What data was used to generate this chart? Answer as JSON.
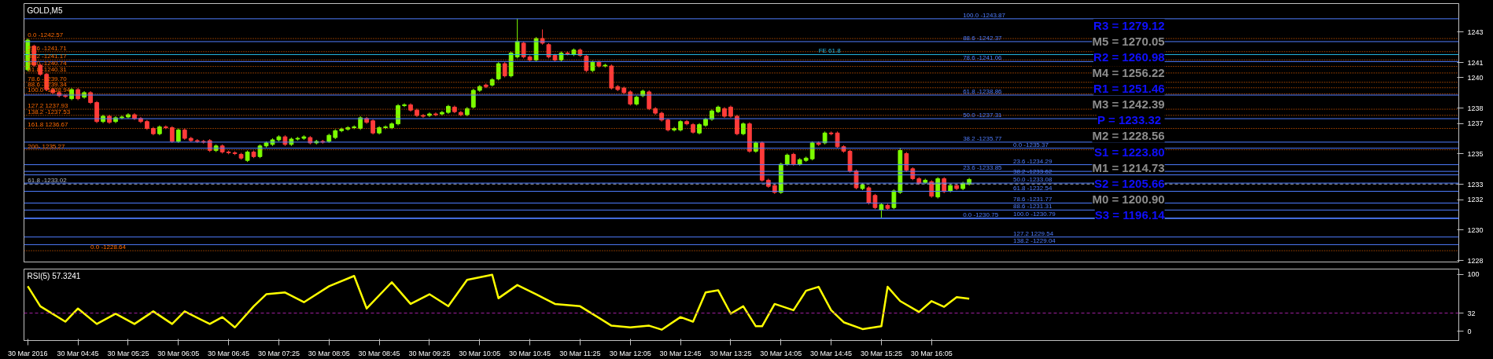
{
  "chart_data": [
    {
      "type": "candlestick",
      "title": "GOLD,M5",
      "x": [
        "2016-03-30T04:05",
        "2016-03-30T04:10",
        "2016-03-30T04:15",
        "2016-03-30T04:20",
        "2016-03-30T04:25",
        "2016-03-30T04:30",
        "2016-03-30T04:35",
        "2016-03-30T04:40",
        "2016-03-30T04:45",
        "2016-03-30T04:50",
        "2016-03-30T04:55",
        "2016-03-30T05:00",
        "2016-03-30T05:05",
        "2016-03-30T05:10",
        "2016-03-30T05:15",
        "2016-03-30T05:20",
        "2016-03-30T05:25",
        "2016-03-30T05:30",
        "2016-03-30T05:35",
        "2016-03-30T05:40",
        "2016-03-30T05:45",
        "2016-03-30T05:50",
        "2016-03-30T05:55",
        "2016-03-30T06:00",
        "2016-03-30T06:05",
        "2016-03-30T06:10",
        "2016-03-30T06:15",
        "2016-03-30T06:20",
        "2016-03-30T06:25",
        "2016-03-30T06:30",
        "2016-03-30T06:35",
        "2016-03-30T06:40",
        "2016-03-30T06:45",
        "2016-03-30T06:50",
        "2016-03-30T06:55",
        "2016-03-30T07:00",
        "2016-03-30T07:05",
        "2016-03-30T07:10",
        "2016-03-30T07:15",
        "2016-03-30T07:20",
        "2016-03-30T07:25",
        "2016-03-30T07:30",
        "2016-03-30T07:35",
        "2016-03-30T07:40",
        "2016-03-30T07:45",
        "2016-03-30T07:50",
        "2016-03-30T07:55",
        "2016-03-30T08:00",
        "2016-03-30T08:05",
        "2016-03-30T08:10",
        "2016-03-30T08:15",
        "2016-03-30T08:20",
        "2016-03-30T08:25",
        "2016-03-30T08:30",
        "2016-03-30T08:35",
        "2016-03-30T08:40",
        "2016-03-30T08:45",
        "2016-03-30T08:50",
        "2016-03-30T08:55",
        "2016-03-30T09:00",
        "2016-03-30T09:05",
        "2016-03-30T09:10",
        "2016-03-30T09:15",
        "2016-03-30T09:20",
        "2016-03-30T09:25",
        "2016-03-30T09:30",
        "2016-03-30T09:35",
        "2016-03-30T09:40",
        "2016-03-30T09:45",
        "2016-03-30T09:50",
        "2016-03-30T09:55",
        "2016-03-30T10:00",
        "2016-03-30T10:05",
        "2016-03-30T10:10",
        "2016-03-30T10:15",
        "2016-03-30T10:20",
        "2016-03-30T10:25",
        "2016-03-30T10:30",
        "2016-03-30T10:35",
        "2016-03-30T10:40",
        "2016-03-30T10:45",
        "2016-03-30T10:50",
        "2016-03-30T10:55",
        "2016-03-30T11:00",
        "2016-03-30T11:05",
        "2016-03-30T11:10",
        "2016-03-30T11:15",
        "2016-03-30T11:20",
        "2016-03-30T11:25",
        "2016-03-30T11:30",
        "2016-03-30T11:35",
        "2016-03-30T11:40",
        "2016-03-30T11:45",
        "2016-03-30T11:50",
        "2016-03-30T11:55",
        "2016-03-30T12:00",
        "2016-03-30T12:05",
        "2016-03-30T12:10",
        "2016-03-30T12:15",
        "2016-03-30T12:20",
        "2016-03-30T12:25",
        "2016-03-30T12:30",
        "2016-03-30T12:35",
        "2016-03-30T12:40",
        "2016-03-30T12:45",
        "2016-03-30T12:50",
        "2016-03-30T12:55",
        "2016-03-30T13:00",
        "2016-03-30T13:05",
        "2016-03-30T13:10",
        "2016-03-30T13:15",
        "2016-03-30T13:20",
        "2016-03-30T13:25",
        "2016-03-30T13:30",
        "2016-03-30T13:35",
        "2016-03-30T13:40",
        "2016-03-30T13:45",
        "2016-03-30T13:50",
        "2016-03-30T13:55",
        "2016-03-30T14:00",
        "2016-03-30T14:05",
        "2016-03-30T14:10",
        "2016-03-30T14:15",
        "2016-03-30T14:20",
        "2016-03-30T14:25",
        "2016-03-30T14:30",
        "2016-03-30T14:35",
        "2016-03-30T14:40",
        "2016-03-30T14:45",
        "2016-03-30T14:50",
        "2016-03-30T14:55",
        "2016-03-30T15:00",
        "2016-03-30T15:05",
        "2016-03-30T15:10",
        "2016-03-30T15:15",
        "2016-03-30T15:20",
        "2016-03-30T15:25",
        "2016-03-30T15:30",
        "2016-03-30T15:35",
        "2016-03-30T15:40",
        "2016-03-30T15:45",
        "2016-03-30T15:50",
        "2016-03-30T15:55",
        "2016-03-30T16:00",
        "2016-03-30T16:05",
        "2016-03-30T16:10",
        "2016-03-30T16:15",
        "2016-03-30T16:20",
        "2016-03-30T16:25",
        "2016-03-30T16:30",
        "2016-03-30T16:35"
      ],
      "ohlc": [
        [
          1240.52,
          1242.57,
          1240.42,
          1242.47
        ],
        [
          1242.07,
          1242.17,
          1240.72,
          1240.82
        ],
        [
          1240.82,
          1240.92,
          1240.12,
          1240.22
        ],
        [
          1240.22,
          1240.32,
          1239.12,
          1239.22
        ],
        [
          1239.22,
          1239.32,
          1238.92,
          1239.02
        ],
        [
          1239.02,
          1239.12,
          1238.72,
          1238.82
        ],
        [
          1238.82,
          1238.92,
          1238.67,
          1238.77
        ],
        [
          1238.62,
          1239.32,
          1238.52,
          1239.22
        ],
        [
          1239.22,
          1239.32,
          1238.52,
          1238.62
        ],
        [
          1238.72,
          1239.12,
          1238.62,
          1239.02
        ],
        [
          1239.02,
          1239.12,
          1238.27,
          1238.37
        ],
        [
          1238.37,
          1238.47,
          1237.02,
          1237.12
        ],
        [
          1237.12,
          1237.57,
          1237.02,
          1237.47
        ],
        [
          1237.47,
          1237.57,
          1236.97,
          1237.07
        ],
        [
          1237.12,
          1237.47,
          1237.02,
          1237.37
        ],
        [
          1237.37,
          1237.52,
          1237.27,
          1237.42
        ],
        [
          1237.42,
          1237.67,
          1237.32,
          1237.57
        ],
        [
          1237.57,
          1237.67,
          1237.22,
          1237.32
        ],
        [
          1237.32,
          1237.42,
          1237.02,
          1237.12
        ],
        [
          1237.12,
          1237.22,
          1236.57,
          1236.67
        ],
        [
          1236.67,
          1236.77,
          1236.22,
          1236.32
        ],
        [
          1236.32,
          1236.87,
          1236.22,
          1236.77
        ],
        [
          1236.77,
          1236.87,
          1236.62,
          1236.72
        ],
        [
          1236.72,
          1236.82,
          1235.72,
          1235.82
        ],
        [
          1235.82,
          1236.67,
          1235.72,
          1236.57
        ],
        [
          1236.57,
          1236.67,
          1235.92,
          1236.02
        ],
        [
          1236.02,
          1236.12,
          1235.77,
          1235.87
        ],
        [
          1235.87,
          1235.97,
          1235.72,
          1235.82
        ],
        [
          1235.82,
          1235.92,
          1235.67,
          1235.77
        ],
        [
          1235.87,
          1235.97,
          1235.12,
          1235.22
        ],
        [
          1235.22,
          1235.62,
          1235.12,
          1235.52
        ],
        [
          1235.52,
          1235.62,
          1235.02,
          1235.12
        ],
        [
          1235.12,
          1235.22,
          1234.97,
          1235.07
        ],
        [
          1235.07,
          1235.17,
          1234.92,
          1235.02
        ],
        [
          1234.97,
          1235.07,
          1234.62,
          1234.72
        ],
        [
          1234.57,
          1235.22,
          1234.47,
          1235.12
        ],
        [
          1235.12,
          1235.22,
          1234.72,
          1234.82
        ],
        [
          1234.82,
          1235.62,
          1234.72,
          1235.52
        ],
        [
          1235.52,
          1235.82,
          1235.42,
          1235.72
        ],
        [
          1235.62,
          1236.02,
          1235.52,
          1235.92
        ],
        [
          1235.92,
          1236.22,
          1235.82,
          1236.12
        ],
        [
          1236.12,
          1236.22,
          1235.52,
          1235.62
        ],
        [
          1235.62,
          1236.07,
          1235.52,
          1235.97
        ],
        [
          1235.97,
          1236.12,
          1235.87,
          1236.02
        ],
        [
          1236.02,
          1236.22,
          1235.92,
          1236.12
        ],
        [
          1236.07,
          1236.17,
          1235.62,
          1235.72
        ],
        [
          1235.72,
          1235.92,
          1235.62,
          1235.82
        ],
        [
          1235.82,
          1235.92,
          1235.67,
          1235.77
        ],
        [
          1235.82,
          1236.32,
          1235.72,
          1236.22
        ],
        [
          1236.07,
          1236.62,
          1235.97,
          1236.52
        ],
        [
          1236.52,
          1236.72,
          1236.42,
          1236.62
        ],
        [
          1236.62,
          1236.82,
          1236.52,
          1236.72
        ],
        [
          1236.72,
          1236.87,
          1236.62,
          1236.77
        ],
        [
          1236.67,
          1237.47,
          1236.57,
          1237.37
        ],
        [
          1237.32,
          1237.42,
          1236.97,
          1237.07
        ],
        [
          1237.17,
          1237.27,
          1236.27,
          1236.37
        ],
        [
          1236.37,
          1236.82,
          1236.27,
          1236.72
        ],
        [
          1236.72,
          1236.87,
          1236.62,
          1236.77
        ],
        [
          1236.72,
          1237.07,
          1236.62,
          1236.97
        ],
        [
          1236.97,
          1238.27,
          1236.87,
          1238.17
        ],
        [
          1238.17,
          1238.32,
          1238.07,
          1238.22
        ],
        [
          1238.22,
          1238.32,
          1237.77,
          1237.87
        ],
        [
          1237.87,
          1237.97,
          1237.42,
          1237.52
        ],
        [
          1237.52,
          1237.62,
          1237.37,
          1237.47
        ],
        [
          1237.52,
          1237.72,
          1237.42,
          1237.62
        ],
        [
          1237.62,
          1237.72,
          1237.47,
          1237.57
        ],
        [
          1237.62,
          1237.82,
          1237.52,
          1237.72
        ],
        [
          1237.72,
          1238.22,
          1237.62,
          1238.12
        ],
        [
          1238.07,
          1238.17,
          1237.67,
          1237.77
        ],
        [
          1237.72,
          1237.82,
          1237.47,
          1237.57
        ],
        [
          1237.57,
          1238.07,
          1237.47,
          1237.97
        ],
        [
          1238.07,
          1239.27,
          1237.97,
          1239.17
        ],
        [
          1239.17,
          1239.52,
          1239.07,
          1239.42
        ],
        [
          1239.52,
          1239.62,
          1239.32,
          1239.42
        ],
        [
          1239.52,
          1239.97,
          1239.42,
          1239.87
        ],
        [
          1239.92,
          1241.02,
          1239.82,
          1240.92
        ],
        [
          1240.92,
          1241.02,
          1240.02,
          1240.12
        ],
        [
          1240.12,
          1241.72,
          1240.02,
          1241.62
        ],
        [
          1241.37,
          1243.87,
          1241.27,
          1242.37
        ],
        [
          1242.27,
          1242.37,
          1241.27,
          1241.37
        ],
        [
          1241.37,
          1241.47,
          1241.07,
          1241.17
        ],
        [
          1241.17,
          1242.67,
          1241.07,
          1242.57
        ],
        [
          1242.57,
          1243.17,
          1242.17,
          1242.27
        ],
        [
          1242.17,
          1242.27,
          1241.27,
          1241.37
        ],
        [
          1241.47,
          1241.57,
          1241.07,
          1241.17
        ],
        [
          1241.17,
          1241.72,
          1241.07,
          1241.62
        ],
        [
          1241.62,
          1241.72,
          1241.47,
          1241.57
        ],
        [
          1241.52,
          1241.92,
          1241.42,
          1241.82
        ],
        [
          1241.82,
          1241.92,
          1241.37,
          1241.47
        ],
        [
          1241.42,
          1241.52,
          1240.37,
          1240.47
        ],
        [
          1240.47,
          1241.12,
          1240.37,
          1241.02
        ],
        [
          1241.02,
          1241.12,
          1240.67,
          1240.77
        ],
        [
          1240.77,
          1240.92,
          1240.67,
          1240.82
        ],
        [
          1240.77,
          1240.87,
          1239.22,
          1239.32
        ],
        [
          1239.42,
          1239.52,
          1239.12,
          1239.22
        ],
        [
          1239.32,
          1239.42,
          1238.92,
          1239.02
        ],
        [
          1239.07,
          1239.17,
          1238.17,
          1238.27
        ],
        [
          1238.27,
          1238.82,
          1238.17,
          1238.72
        ],
        [
          1238.82,
          1239.22,
          1238.72,
          1239.12
        ],
        [
          1239.07,
          1239.17,
          1237.87,
          1237.97
        ],
        [
          1237.97,
          1238.07,
          1237.57,
          1237.67
        ],
        [
          1237.67,
          1237.77,
          1237.12,
          1237.22
        ],
        [
          1237.22,
          1237.32,
          1236.47,
          1236.57
        ],
        [
          1236.57,
          1236.77,
          1236.47,
          1236.67
        ],
        [
          1236.57,
          1237.22,
          1236.47,
          1237.12
        ],
        [
          1237.12,
          1237.22,
          1236.87,
          1236.97
        ],
        [
          1236.92,
          1237.02,
          1236.32,
          1236.42
        ],
        [
          1236.37,
          1237.02,
          1236.27,
          1236.92
        ],
        [
          1236.87,
          1237.37,
          1236.77,
          1237.27
        ],
        [
          1237.27,
          1237.92,
          1237.17,
          1237.82
        ],
        [
          1237.77,
          1238.17,
          1237.67,
          1238.07
        ],
        [
          1237.97,
          1238.07,
          1237.37,
          1237.47
        ],
        [
          1238.07,
          1238.17,
          1237.37,
          1237.47
        ],
        [
          1237.47,
          1237.57,
          1236.22,
          1236.32
        ],
        [
          1236.32,
          1237.07,
          1236.22,
          1236.97
        ],
        [
          1236.97,
          1237.07,
          1235.07,
          1235.17
        ],
        [
          1235.17,
          1235.82,
          1235.07,
          1235.72
        ],
        [
          1235.72,
          1235.82,
          1233.17,
          1233.27
        ],
        [
          1233.27,
          1233.37,
          1232.77,
          1232.87
        ],
        [
          1232.92,
          1233.02,
          1232.37,
          1232.47
        ],
        [
          1232.47,
          1234.42,
          1232.37,
          1234.32
        ],
        [
          1234.32,
          1235.02,
          1234.22,
          1234.92
        ],
        [
          1234.97,
          1235.07,
          1234.22,
          1234.32
        ],
        [
          1234.32,
          1234.72,
          1234.22,
          1234.62
        ],
        [
          1234.57,
          1234.82,
          1234.47,
          1234.72
        ],
        [
          1234.67,
          1235.82,
          1234.57,
          1235.72
        ],
        [
          1235.72,
          1235.82,
          1235.52,
          1235.62
        ],
        [
          1235.72,
          1236.47,
          1235.62,
          1236.37
        ],
        [
          1236.37,
          1236.47,
          1236.22,
          1236.32
        ],
        [
          1236.37,
          1236.47,
          1235.37,
          1235.47
        ],
        [
          1235.47,
          1235.57,
          1235.07,
          1235.17
        ],
        [
          1235.17,
          1235.27,
          1233.77,
          1233.87
        ],
        [
          1233.87,
          1233.97,
          1232.67,
          1232.77
        ],
        [
          1232.72,
          1233.07,
          1232.62,
          1232.97
        ],
        [
          1232.77,
          1232.87,
          1231.67,
          1231.77
        ],
        [
          1232.27,
          1232.37,
          1231.37,
          1231.47
        ],
        [
          1231.32,
          1231.77,
          1230.79,
          1231.67
        ],
        [
          1231.62,
          1231.72,
          1231.32,
          1231.42
        ],
        [
          1231.47,
          1232.67,
          1231.37,
          1232.57
        ],
        [
          1232.47,
          1235.37,
          1232.37,
          1235.22
        ],
        [
          1235.02,
          1235.12,
          1233.82,
          1233.92
        ],
        [
          1234.02,
          1234.12,
          1233.27,
          1233.37
        ],
        [
          1233.37,
          1233.47,
          1232.97,
          1233.07
        ],
        [
          1233.12,
          1233.37,
          1233.02,
          1233.27
        ],
        [
          1233.17,
          1233.27,
          1232.12,
          1232.22
        ],
        [
          1232.17,
          1233.47,
          1232.07,
          1233.37
        ],
        [
          1233.37,
          1233.47,
          1232.42,
          1232.52
        ],
        [
          1232.57,
          1233.02,
          1232.47,
          1232.92
        ],
        [
          1232.92,
          1233.02,
          1232.62,
          1232.72
        ],
        [
          1232.72,
          1233.17,
          1232.62,
          1233.07
        ],
        [
          1233.02,
          1233.42,
          1232.92,
          1233.32
        ]
      ],
      "colors": [
        "#7cfc00",
        "#ff3b3b",
        "#ff3b3b",
        "#ff3b3b",
        "#ff3b3b",
        "#ff3b3b",
        "#ff3b3b",
        "#7cfc00",
        "#ff3b3b",
        "#7cfc00",
        "#ff3b3b",
        "#ff3b3b",
        "#7cfc00",
        "#ff3b3b",
        "#7cfc00",
        "#7cfc00",
        "#7cfc00",
        "#ff3b3b",
        "#ff3b3b",
        "#ff3b3b",
        "#ff3b3b",
        "#7cfc00",
        "#ff3b3b",
        "#ff3b3b",
        "#7cfc00",
        "#ff3b3b",
        "#ff3b3b",
        "#ff3b3b",
        "#ff3b3b",
        "#ff3b3b",
        "#7cfc00",
        "#ff3b3b",
        "#ff3b3b",
        "#ff3b3b",
        "#ff3b3b",
        "#7cfc00",
        "#ff3b3b",
        "#7cfc00",
        "#7cfc00",
        "#7cfc00",
        "#7cfc00",
        "#ff3b3b",
        "#7cfc00",
        "#7cfc00",
        "#7cfc00",
        "#ff3b3b",
        "#7cfc00",
        "#ff3b3b",
        "#7cfc00",
        "#7cfc00",
        "#7cfc00",
        "#7cfc00",
        "#7cfc00",
        "#7cfc00",
        "#ff3b3b",
        "#ff3b3b",
        "#7cfc00",
        "#7cfc00",
        "#7cfc00",
        "#7cfc00",
        "#7cfc00",
        "#ff3b3b",
        "#ff3b3b",
        "#ff3b3b",
        "#7cfc00",
        "#ff3b3b",
        "#7cfc00",
        "#7cfc00",
        "#ff3b3b",
        "#ff3b3b",
        "#7cfc00",
        "#7cfc00",
        "#7cfc00",
        "#ff3b3b",
        "#7cfc00",
        "#7cfc00",
        "#ff3b3b",
        "#7cfc00",
        "#7cfc00",
        "#ff3b3b",
        "#ff3b3b",
        "#7cfc00",
        "#ff3b3b",
        "#ff3b3b",
        "#ff3b3b",
        "#7cfc00",
        "#ff3b3b",
        "#7cfc00",
        "#ff3b3b",
        "#ff3b3b",
        "#7cfc00",
        "#ff3b3b",
        "#7cfc00",
        "#ff3b3b",
        "#ff3b3b",
        "#ff3b3b",
        "#ff3b3b",
        "#7cfc00",
        "#7cfc00",
        "#ff3b3b",
        "#ff3b3b",
        "#ff3b3b",
        "#ff3b3b",
        "#7cfc00",
        "#7cfc00",
        "#ff3b3b",
        "#ff3b3b",
        "#7cfc00",
        "#7cfc00",
        "#7cfc00",
        "#7cfc00",
        "#ff3b3b",
        "#ff3b3b",
        "#ff3b3b",
        "#7cfc00",
        "#ff3b3b",
        "#7cfc00",
        "#ff3b3b",
        "#ff3b3b",
        "#ff3b3b",
        "#7cfc00",
        "#7cfc00",
        "#ff3b3b",
        "#7cfc00",
        "#7cfc00",
        "#7cfc00",
        "#ff3b3b",
        "#7cfc00",
        "#ff3b3b",
        "#ff3b3b",
        "#ff3b3b",
        "#ff3b3b",
        "#ff3b3b",
        "#7cfc00",
        "#ff3b3b",
        "#ff3b3b",
        "#7cfc00",
        "#ff3b3b",
        "#7cfc00",
        "#7cfc00",
        "#ff3b3b",
        "#ff3b3b",
        "#ff3b3b",
        "#7cfc00",
        "#ff3b3b",
        "#7cfc00",
        "#ff3b3b",
        "#7cfc00",
        "#ff3b3b",
        "#7cfc00",
        "#7cfc00"
      ],
      "xlim": [
        "2016-03-30T04:02",
        "2016-03-30T23:05"
      ],
      "ylim": [
        1227.9,
        1244.87
      ],
      "yticks": [
        1243,
        1241,
        1240,
        1238,
        1237,
        1235,
        1233,
        1232,
        1230,
        1228
      ],
      "tick_labels": "y",
      "ref_lines": [
        {
          "axis": "y",
          "value": 1242.57,
          "color": "#ff6a00",
          "line_style": "dotted"
        },
        {
          "axis": "y",
          "value": 1241.71,
          "color": "#ff6a00",
          "line_style": "dotted"
        },
        {
          "axis": "y",
          "value": 1241.17,
          "color": "#ff6a00",
          "line_style": "dotted"
        },
        {
          "axis": "y",
          "value": 1240.74,
          "color": "#ff6a00",
          "line_style": "dotted"
        },
        {
          "axis": "y",
          "value": 1240.31,
          "color": "#ff6a00",
          "line_style": "dotted"
        },
        {
          "axis": "y",
          "value": 1239.7,
          "color": "#ff6a00",
          "line_style": "dotted"
        },
        {
          "axis": "y",
          "value": 1239.34,
          "color": "#ff6a00",
          "line_style": "dotted"
        },
        {
          "axis": "y",
          "value": 1238.94,
          "color": "#ff6a00",
          "line_style": "dotted"
        },
        {
          "axis": "y",
          "value": 1237.93,
          "color": "#ff6a00",
          "line_style": "dotted"
        },
        {
          "axis": "y",
          "value": 1237.53,
          "color": "#ff6a00",
          "line_style": "dotted"
        },
        {
          "axis": "y",
          "value": 1236.67,
          "color": "#ff6a00",
          "line_style": "dotted"
        },
        {
          "axis": "y",
          "value": 1235.27,
          "color": "#ff6a00",
          "line_style": "dotted"
        },
        {
          "axis": "y",
          "value": 1233.02,
          "color": "#b0b8c8",
          "line_style": "dashed"
        },
        {
          "axis": "y",
          "value": 1228.64,
          "color": "#ff6a00",
          "line_style": "dotted"
        },
        {
          "axis": "y",
          "value": 1243.87,
          "color": "#4f7dff"
        },
        {
          "axis": "y",
          "value": 1242.37,
          "color": "#4f7dff"
        },
        {
          "axis": "y",
          "value": 1241.06,
          "color": "#4f7dff"
        },
        {
          "axis": "y",
          "value": 1238.86,
          "color": "#4f7dff"
        },
        {
          "axis": "y",
          "value": 1237.31,
          "color": "#4f7dff"
        },
        {
          "axis": "y",
          "value": 1235.77,
          "color": "#4f7dff"
        },
        {
          "axis": "y",
          "value": 1233.85,
          "color": "#4f7dff"
        },
        {
          "axis": "y",
          "value": 1230.75,
          "color": "#4f7dff"
        },
        {
          "axis": "y",
          "value": 1235.37,
          "color": "#4f7dff"
        },
        {
          "axis": "y",
          "value": 1234.29,
          "color": "#4f7dff"
        },
        {
          "axis": "y",
          "value": 1233.62,
          "color": "#4f7dff"
        },
        {
          "axis": "y",
          "value": 1233.08,
          "color": "#4f7dff"
        },
        {
          "axis": "y",
          "value": 1232.54,
          "color": "#4f7dff"
        },
        {
          "axis": "y",
          "value": 1231.77,
          "color": "#4f7dff"
        },
        {
          "axis": "y",
          "value": 1231.31,
          "color": "#4f7dff"
        },
        {
          "axis": "y",
          "value": 1230.79,
          "color": "#4f7dff"
        },
        {
          "axis": "y",
          "value": 1229.54,
          "color": "#4f7dff"
        },
        {
          "axis": "y",
          "value": 1229.04,
          "color": "#4f7dff"
        },
        {
          "axis": "y",
          "value": 1241.52,
          "color": "#22b8e6"
        }
      ],
      "annotations": [
        {
          "text": "0.0 -1242.57",
          "x": "2016-03-30T04:05",
          "y": 1242.57
        },
        {
          "text": "23.6 -1241.71",
          "x": "2016-03-30T04:05",
          "y": 1241.71
        },
        {
          "text": "38.2 -1241.17",
          "x": "2016-03-30T04:05",
          "y": 1241.17
        },
        {
          "text": "50.0 -1240.74",
          "x": "2016-03-30T04:05",
          "y": 1240.74
        },
        {
          "text": "61.8 -1240.31",
          "x": "2016-03-30T04:05",
          "y": 1240.31
        },
        {
          "text": "78.6 -1239.70",
          "x": "2016-03-30T04:05",
          "y": 1239.7
        },
        {
          "text": "88.6 -1239.34",
          "x": "2016-03-30T04:05",
          "y": 1239.34
        },
        {
          "text": "100.0 -1238.94",
          "x": "2016-03-30T04:05",
          "y": 1238.94
        },
        {
          "text": "127.2 1237.93",
          "x": "2016-03-30T04:05",
          "y": 1237.93
        },
        {
          "text": "138.2 -1237.53",
          "x": "2016-03-30T04:05",
          "y": 1237.53
        },
        {
          "text": "161.8 1236.67",
          "x": "2016-03-30T04:05",
          "y": 1236.67
        },
        {
          "text": "200- 1235.27",
          "x": "2016-03-30T04:05",
          "y": 1235.27
        },
        {
          "text": "61.8 -1233.02",
          "x": "2016-03-30T04:05",
          "y": 1233.02
        },
        {
          "text": "0.0 -1228.64",
          "x": "2016-03-30T04:55",
          "y": 1228.64
        },
        {
          "text": "FE 61.8",
          "x": "2016-03-30T14:35",
          "y": 1241.52
        },
        {
          "text": "100.0 -1243.87",
          "x": "2016-03-30T16:30",
          "y": 1243.87
        },
        {
          "text": "88.6 -1242.37",
          "x": "2016-03-30T16:30",
          "y": 1242.37
        },
        {
          "text": "78.6 -1241.06",
          "x": "2016-03-30T16:30",
          "y": 1241.06
        },
        {
          "text": "61.8 -1238.86",
          "x": "2016-03-30T16:30",
          "y": 1238.86
        },
        {
          "text": "50.0 -1237.31",
          "x": "2016-03-30T16:30",
          "y": 1237.31
        },
        {
          "text": "38.2 -1235.77",
          "x": "2016-03-30T16:30",
          "y": 1235.77
        },
        {
          "text": "23.6 -1233.85",
          "x": "2016-03-30T16:30",
          "y": 1233.85
        },
        {
          "text": "0.0 -1230.75",
          "x": "2016-03-30T16:30",
          "y": 1230.75
        },
        {
          "text": "0.0 -1235.37",
          "x": "2016-03-30T17:10",
          "y": 1235.37
        },
        {
          "text": "23.6 -1234.29",
          "x": "2016-03-30T17:10",
          "y": 1234.29
        },
        {
          "text": "38.2 -1233.62",
          "x": "2016-03-30T17:10",
          "y": 1233.62
        },
        {
          "text": "50.0 -1233.08",
          "x": "2016-03-30T17:10",
          "y": 1233.08
        },
        {
          "text": "61.8 -1232.54",
          "x": "2016-03-30T17:10",
          "y": 1232.54
        },
        {
          "text": "78.6 -1231.77",
          "x": "2016-03-30T17:10",
          "y": 1231.77
        },
        {
          "text": "88.6 -1231.31",
          "x": "2016-03-30T17:10",
          "y": 1231.31
        },
        {
          "text": "100.0 -1230.79",
          "x": "2016-03-30T17:10",
          "y": 1230.79
        },
        {
          "text": "127.2 1229.54",
          "x": "2016-03-30T17:10",
          "y": 1229.54
        },
        {
          "text": "138.2 -1229.04",
          "x": "2016-03-30T17:10",
          "y": 1229.04
        },
        "R3 = 1279.12",
        "M5 = 1270.05",
        "R2 = 1260.98",
        "M4 = 1256.22",
        "R1 = 1251.46",
        "M3 = 1242.39",
        "P  = 1233.32",
        "M2 = 1228.56",
        "S1 = 1223.80",
        "M1 = 1214.73",
        "S2 = 1205.66",
        "M0 = 1200.90",
        "S3 = 1196.14"
      ]
    },
    {
      "type": "line",
      "title": "RSI(5) 57.3241",
      "series": [
        {
          "color": "#ffff00",
          "x": [
            "2016-03-30T04:05",
            "2016-03-30T04:15",
            "2016-03-30T04:35",
            "2016-03-30T04:45",
            "2016-03-30T05:00",
            "2016-03-30T05:15",
            "2016-03-30T05:30",
            "2016-03-30T05:45",
            "2016-03-30T06:00",
            "2016-03-30T06:10",
            "2016-03-30T06:30",
            "2016-03-30T06:40",
            "2016-03-30T06:50",
            "2016-03-30T07:05",
            "2016-03-30T07:15",
            "2016-03-30T07:30",
            "2016-03-30T07:45",
            "2016-03-30T08:05",
            "2016-03-30T08:25",
            "2016-03-30T08:35",
            "2016-03-30T08:55",
            "2016-03-30T09:10",
            "2016-03-30T09:25",
            "2016-03-30T09:40",
            "2016-03-30T09:55",
            "2016-03-30T10:15",
            "2016-03-30T10:20",
            "2016-03-30T10:35",
            "2016-03-30T10:50",
            "2016-03-30T11:05",
            "2016-03-30T11:25",
            "2016-03-30T11:50",
            "2016-03-30T12:05",
            "2016-03-30T12:20",
            "2016-03-30T12:30",
            "2016-03-30T12:45",
            "2016-03-30T12:55",
            "2016-03-30T13:05",
            "2016-03-30T13:15",
            "2016-03-30T13:25",
            "2016-03-30T13:35",
            "2016-03-30T13:45",
            "2016-03-30T13:50",
            "2016-03-30T14:00",
            "2016-03-30T14:15",
            "2016-03-30T14:25",
            "2016-03-30T14:35",
            "2016-03-30T14:45",
            "2016-03-30T14:55",
            "2016-03-30T15:10",
            "2016-03-30T15:25",
            "2016-03-30T15:30",
            "2016-03-30T15:40",
            "2016-03-30T15:55",
            "2016-03-30T16:05",
            "2016-03-30T16:15",
            "2016-03-30T16:25",
            "2016-03-30T16:35"
          ],
          "values": [
            79,
            44,
            17,
            40,
            13,
            31,
            13,
            35,
            13,
            35,
            13,
            25,
            7,
            44,
            65,
            68,
            51,
            79,
            97,
            40,
            86,
            48,
            65,
            44,
            90,
            99,
            58,
            81,
            65,
            48,
            44,
            10,
            7,
            10,
            3,
            25,
            17,
            68,
            72,
            31,
            44,
            9,
            9,
            48,
            37,
            71,
            78,
            37,
            16,
            4,
            9,
            78,
            53,
            34,
            53,
            43,
            60,
            57
          ]
        }
      ],
      "xlim": [
        "2016-03-30T04:02",
        "2016-03-30T23:05"
      ],
      "xticks": [
        {
          "value": "2016-03-30T04:05",
          "label": "30 Mar 2016"
        },
        {
          "value": "2016-03-30T04:45",
          "label": "30 Mar 04:45"
        },
        {
          "value": "2016-03-30T05:25",
          "label": "30 Mar 05:25"
        },
        {
          "value": "2016-03-30T06:05",
          "label": "30 Mar 06:05"
        },
        {
          "value": "2016-03-30T06:45",
          "label": "30 Mar 06:45"
        },
        {
          "value": "2016-03-30T07:25",
          "label": "30 Mar 07:25"
        },
        {
          "value": "2016-03-30T08:05",
          "label": "30 Mar 08:05"
        },
        {
          "value": "2016-03-30T08:45",
          "label": "30 Mar 08:45"
        },
        {
          "value": "2016-03-30T09:25",
          "label": "30 Mar 09:25"
        },
        {
          "value": "2016-03-30T10:05",
          "label": "30 Mar 10:05"
        },
        {
          "value": "2016-03-30T10:45",
          "label": "30 Mar 10:45"
        },
        {
          "value": "2016-03-30T11:25",
          "label": "30 Mar 11:25"
        },
        {
          "value": "2016-03-30T12:05",
          "label": "30 Mar 12:05"
        },
        {
          "value": "2016-03-30T12:45",
          "label": "30 Mar 12:45"
        },
        {
          "value": "2016-03-30T13:25",
          "label": "30 Mar 13:25"
        },
        {
          "value": "2016-03-30T14:05",
          "label": "30 Mar 14:05"
        },
        {
          "value": "2016-03-30T14:45",
          "label": "30 Mar 14:45"
        },
        {
          "value": "2016-03-30T15:25",
          "label": "30 Mar 15:25"
        },
        {
          "value": "2016-03-30T16:05",
          "label": "30 Mar 16:05"
        }
      ],
      "ylim": [
        -16,
        109
      ],
      "yticks": [
        100,
        32,
        0
      ],
      "ref_lines": [
        {
          "axis": "y",
          "value": 32,
          "color": "#a020a0",
          "line_style": "dashed"
        }
      ]
    }
  ]
}
